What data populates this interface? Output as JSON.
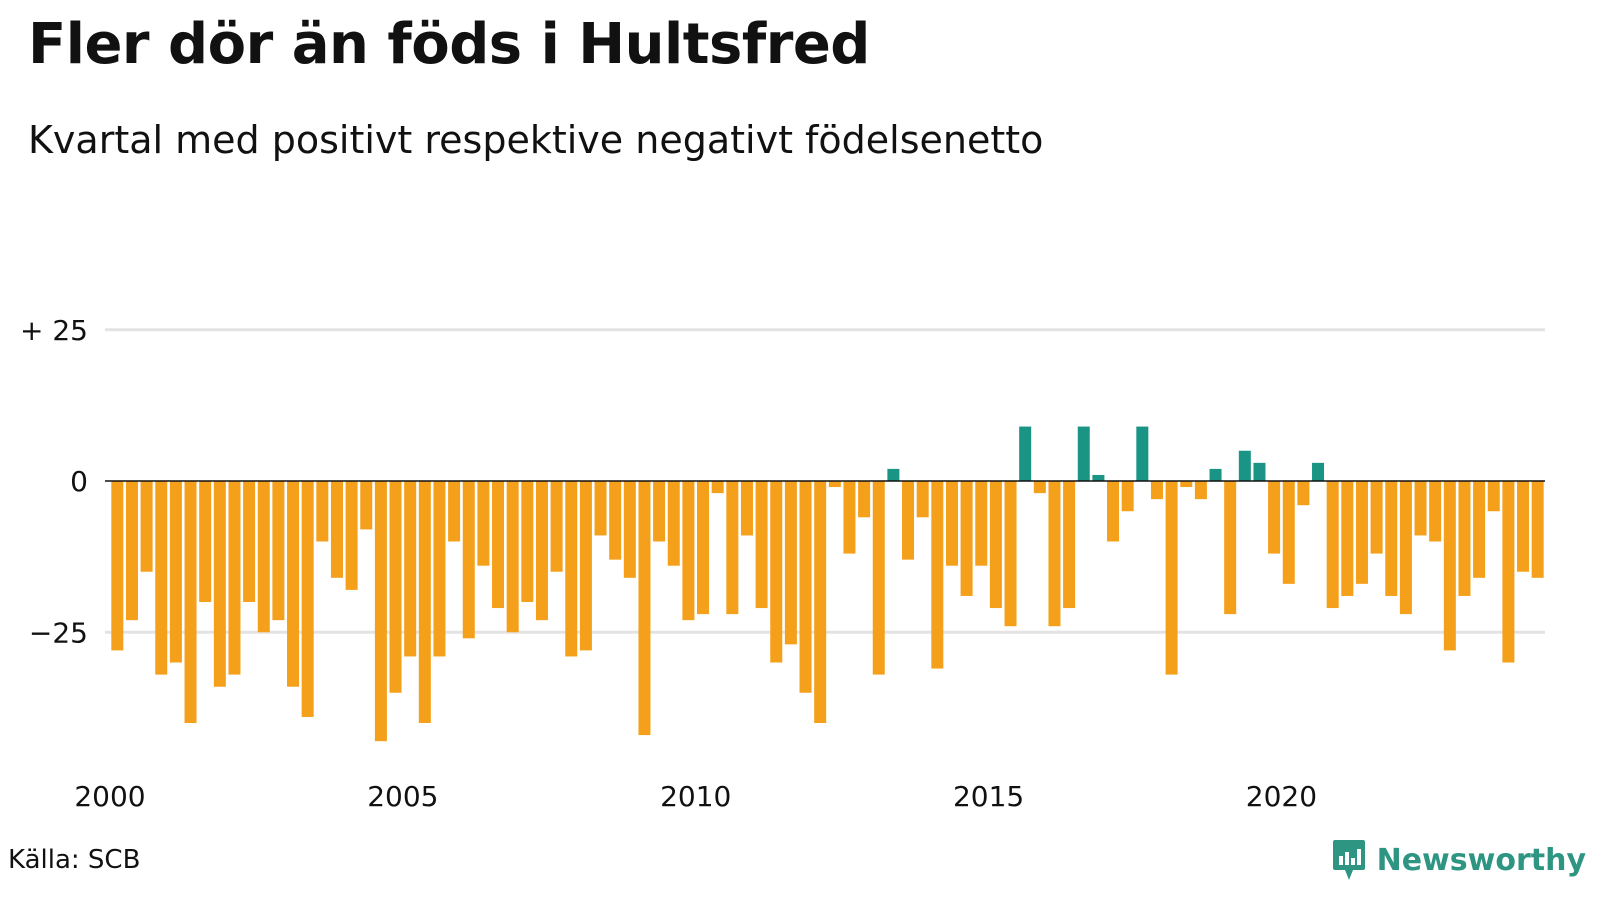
{
  "title": "Fler dör än föds i Hultsfred",
  "subtitle": "Kvartal med positivt respektive negativt födelsenetto",
  "source": "Källa: SCB",
  "brand": {
    "name": "Newsworthy",
    "icon": "newsworthy-logo-icon"
  },
  "colors": {
    "positive": "#1a9585",
    "negative": "#f5a01a",
    "gridline": "#e3e3e3",
    "zeroline": "#111111"
  },
  "chart_data": {
    "type": "bar",
    "title": "Fler dör än föds i Hultsfred",
    "subtitle": "Kvartal med positivt respektive negativt födelsenetto",
    "xlabel": "",
    "ylabel": "",
    "ylim": [
      -45,
      25
    ],
    "grid": true,
    "y_ticks": [
      {
        "value": 25,
        "label": "+ 25"
      },
      {
        "value": 0,
        "label": "0"
      },
      {
        "value": -25,
        "label": "−25"
      }
    ],
    "x_ticks": [
      {
        "value": 2000,
        "label": "2000"
      },
      {
        "value": 2005,
        "label": "2005"
      },
      {
        "value": 2010,
        "label": "2010"
      },
      {
        "value": 2015,
        "label": "2015"
      },
      {
        "value": 2020,
        "label": "2020"
      }
    ],
    "x_start": 2000,
    "x_end": 2024.5,
    "periods_per_year": 4,
    "categories": [
      "2000Q1",
      "2000Q2",
      "2000Q3",
      "2000Q4",
      "2001Q1",
      "2001Q2",
      "2001Q3",
      "2001Q4",
      "2002Q1",
      "2002Q2",
      "2002Q3",
      "2002Q4",
      "2003Q1",
      "2003Q2",
      "2003Q3",
      "2003Q4",
      "2004Q1",
      "2004Q2",
      "2004Q3",
      "2004Q4",
      "2005Q1",
      "2005Q2",
      "2005Q3",
      "2005Q4",
      "2006Q1",
      "2006Q2",
      "2006Q3",
      "2006Q4",
      "2007Q1",
      "2007Q2",
      "2007Q3",
      "2007Q4",
      "2008Q1",
      "2008Q2",
      "2008Q3",
      "2008Q4",
      "2009Q1",
      "2009Q2",
      "2009Q3",
      "2009Q4",
      "2010Q1",
      "2010Q2",
      "2010Q3",
      "2010Q4",
      "2011Q1",
      "2011Q2",
      "2011Q3",
      "2011Q4",
      "2012Q1",
      "2012Q2",
      "2012Q3",
      "2012Q4",
      "2013Q1",
      "2013Q2",
      "2013Q3",
      "2013Q4",
      "2014Q1",
      "2014Q2",
      "2014Q3",
      "2014Q4",
      "2015Q1",
      "2015Q2",
      "2015Q3",
      "2015Q4",
      "2016Q1",
      "2016Q2",
      "2016Q3",
      "2016Q4",
      "2017Q1",
      "2017Q2",
      "2017Q3",
      "2017Q4",
      "2018Q1",
      "2018Q2",
      "2018Q3",
      "2018Q4",
      "2019Q1",
      "2019Q2",
      "2019Q3",
      "2019Q4",
      "2020Q1",
      "2020Q2",
      "2020Q3",
      "2020Q4",
      "2021Q1",
      "2021Q2",
      "2021Q3",
      "2021Q4",
      "2022Q1",
      "2022Q2",
      "2022Q3",
      "2022Q4",
      "2023Q1",
      "2023Q2",
      "2023Q3",
      "2023Q4",
      "2024Q1",
      "2024Q2"
    ],
    "values": [
      -28,
      -23,
      -15,
      -32,
      -30,
      -40,
      -20,
      -34,
      -32,
      -20,
      -25,
      -23,
      -34,
      -39,
      -10,
      -16,
      -18,
      -8,
      -43,
      -35,
      -29,
      -40,
      -29,
      -10,
      -26,
      -14,
      -21,
      -25,
      -20,
      -23,
      -15,
      -29,
      -28,
      -9,
      -13,
      -16,
      -42,
      -10,
      -14,
      -23,
      -22,
      -2,
      -22,
      -9,
      -21,
      -30,
      -27,
      -35,
      -40,
      -1,
      -12,
      -6,
      -32,
      2,
      -13,
      -6,
      -31,
      -14,
      -19,
      -14,
      -21,
      -24,
      9,
      -2,
      -24,
      -21,
      9,
      1,
      -10,
      -5,
      9,
      -3,
      -32,
      -1,
      -3,
      2,
      -22,
      5,
      3,
      -12,
      -17,
      -4,
      3,
      -21,
      -19,
      -17,
      -12,
      -19,
      -22,
      -9,
      -10,
      -28,
      -19,
      -16,
      -5,
      -30,
      -15,
      -16
    ]
  }
}
